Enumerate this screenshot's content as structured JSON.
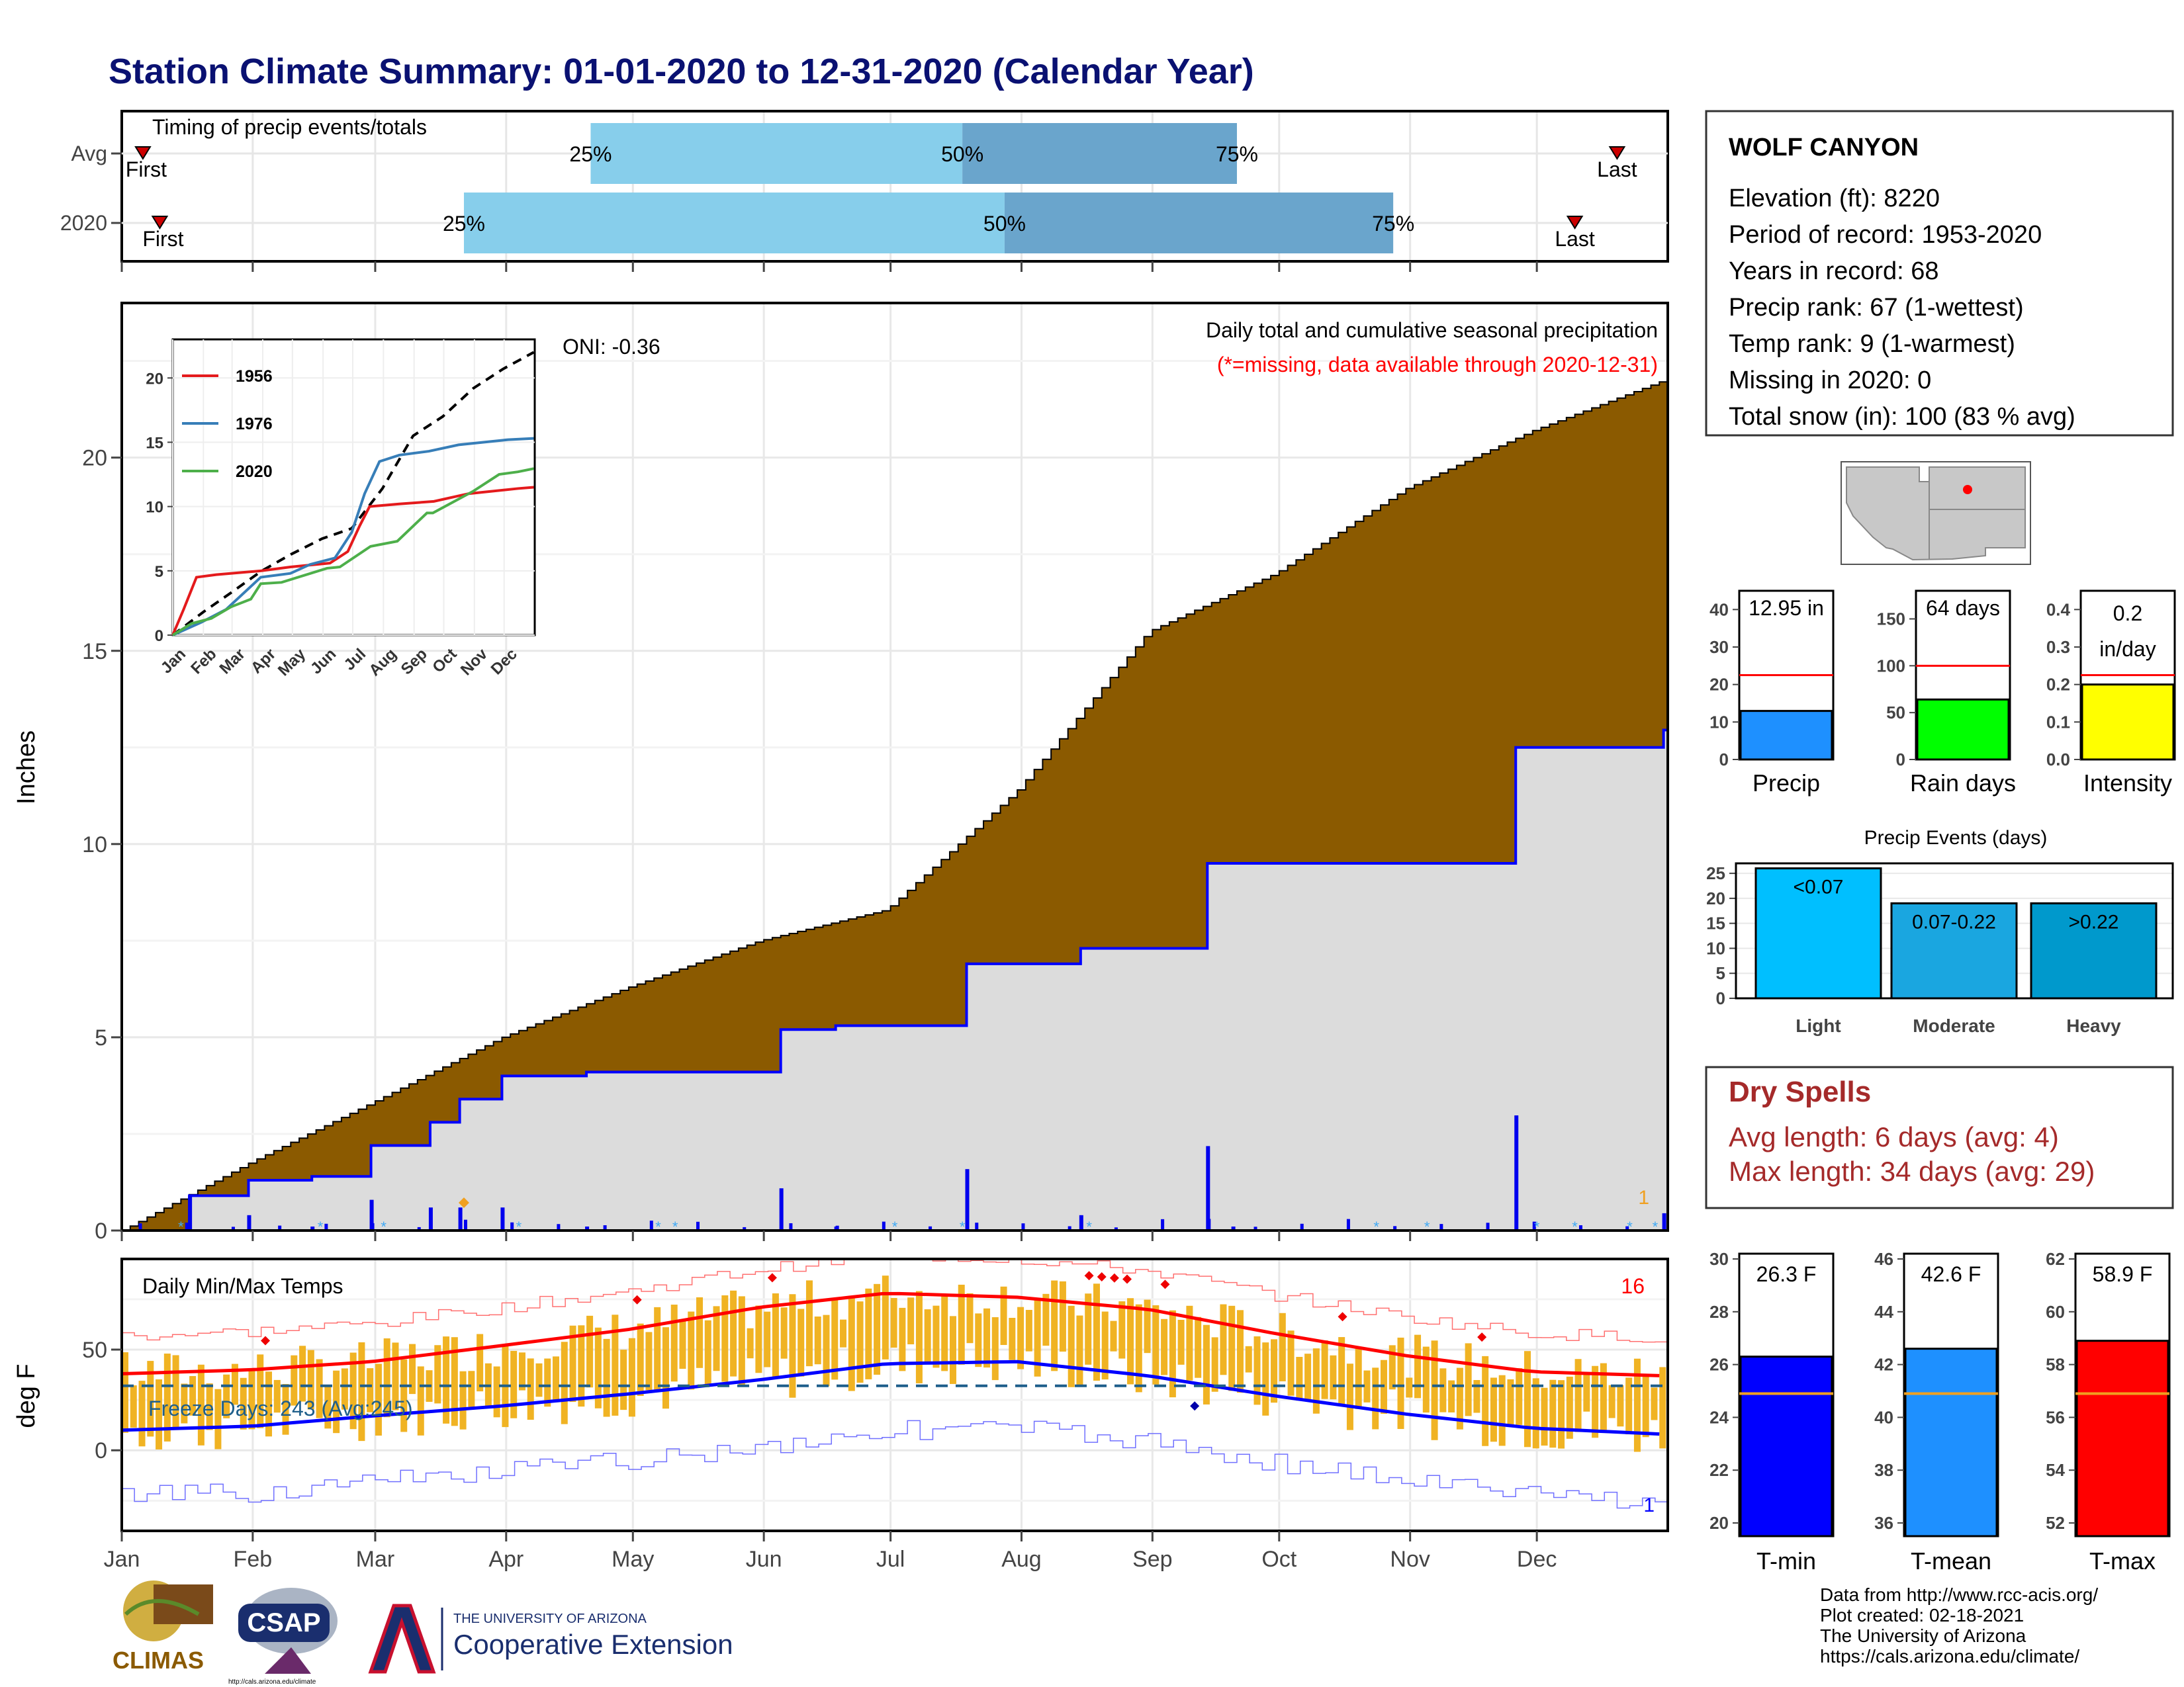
{
  "title": "Station Climate Summary: 01-01-2020 to 12-31-2020 (Calendar Year)",
  "months": [
    "Jan",
    "Feb",
    "Mar",
    "Apr",
    "May",
    "Jun",
    "Jul",
    "Aug",
    "Sep",
    "Oct",
    "Nov",
    "Dec"
  ],
  "colors": {
    "title": "#0a1172",
    "precip_fill": "#8b5a00",
    "precip_2020_fill": "#dcdcdc",
    "precip_line": "#0000ff",
    "quartile_light": "#87ceeb",
    "quartile_dark": "#6aa5cc",
    "temp_bar": "#f0b323",
    "tmax_line": "#ff0000",
    "tmin_line": "#0000ff",
    "dry_spells": "#a52a2a",
    "missing_note": "#ff0000"
  },
  "station": {
    "name": "WOLF CANYON",
    "lines": [
      "Elevation (ft): 8220",
      "Period of record: 1953-2020",
      "Years in record: 68",
      "Precip rank: 67 (1-wettest)",
      "Temp rank: 9 (1-warmest)",
      "Missing in 2020: 0",
      "Total snow (in): 100 (83 % avg)"
    ]
  },
  "timing_panel": {
    "label": "Timing of precip events/totals",
    "rows": [
      {
        "label": "Avg",
        "first": "First",
        "last": "Last",
        "first_doy": 6,
        "last_doy": 355,
        "q25_doy": 112,
        "q50_doy": 200,
        "q75_doy": 265
      },
      {
        "label": "2020",
        "first": "First",
        "last": "Last",
        "first_doy": 10,
        "last_doy": 345,
        "q25_doy": 82,
        "q50_doy": 210,
        "q75_doy": 302
      }
    ],
    "q_labels": [
      "25%",
      "50%",
      "75%"
    ]
  },
  "precip_panel": {
    "ylabel": "Inches",
    "yticks": [
      "0",
      "5",
      "10",
      "15",
      "20"
    ],
    "ylim": [
      0,
      24
    ],
    "title_line1": "Daily total and cumulative seasonal precipitation",
    "title_line2": "(*=missing, data available through 2020-12-31)",
    "oni": "ONI: -0.36",
    "extreme_count": "1",
    "chart_data": {
      "type": "area",
      "avg_cumulative": {
        "doy": [
          1,
          32,
          60,
          91,
          121,
          152,
          182,
          213,
          244,
          274,
          305,
          335,
          366
        ],
        "values": [
          0,
          1.8,
          3.3,
          5.0,
          6.3,
          7.5,
          8.3,
          11.4,
          15.5,
          17.0,
          19.2,
          20.7,
          22.0
        ]
      },
      "cumulative_2020": {
        "doy": [
          1,
          17,
          31,
          46,
          60,
          74,
          81,
          91,
          111,
          157,
          170,
          201,
          228,
          258,
          264,
          331,
          366
        ],
        "values": [
          0,
          0.9,
          1.3,
          1.4,
          2.2,
          2.8,
          3.4,
          4.0,
          4.1,
          5.2,
          5.3,
          6.9,
          7.3,
          9.5,
          9.5,
          12.5,
          12.95
        ],
        "total": 12.95
      }
    }
  },
  "inset": {
    "series": [
      {
        "name": "1956",
        "color": "#e41a1c",
        "doy": [
          1,
          12,
          25,
          45,
          90,
          120,
          160,
          178,
          190,
          200,
          230,
          265,
          300,
          350,
          366
        ],
        "values": [
          0,
          2,
          4.5,
          4.7,
          5.0,
          5.3,
          5.6,
          6.5,
          8.5,
          10.0,
          10.2,
          10.4,
          11.0,
          11.4,
          11.5
        ]
      },
      {
        "name": "1976",
        "color": "#377eb8",
        "doy": [
          1,
          30,
          55,
          90,
          120,
          140,
          165,
          182,
          195,
          210,
          230,
          260,
          290,
          340,
          366
        ],
        "values": [
          0,
          1.0,
          2.0,
          4.5,
          4.8,
          5.5,
          6.0,
          8.0,
          11.0,
          13.5,
          14.0,
          14.3,
          14.8,
          15.2,
          15.3
        ]
      },
      {
        "name": "2020",
        "color": "#4daf4a",
        "doy": [
          1,
          20,
          40,
          60,
          80,
          90,
          111,
          157,
          170,
          201,
          228,
          258,
          264,
          305,
          331,
          350,
          366
        ],
        "values": [
          0,
          0.9,
          1.3,
          2.2,
          2.8,
          4.0,
          4.1,
          5.2,
          5.3,
          6.9,
          7.3,
          9.5,
          9.5,
          11.2,
          12.5,
          12.7,
          12.95
        ]
      }
    ],
    "avg": {
      "doy": [
        1,
        32,
        60,
        91,
        121,
        152,
        182,
        213,
        244,
        274,
        305,
        335,
        366
      ],
      "values": [
        0,
        1.8,
        3.3,
        5.0,
        6.3,
        7.5,
        8.3,
        11.4,
        15.5,
        17.0,
        19.2,
        20.7,
        22.0
      ]
    },
    "yticks": [
      "0",
      "5",
      "10",
      "15",
      "20"
    ]
  },
  "temp_panel": {
    "ylabel": "deg F",
    "label": "Daily Min/Max Temps",
    "freeze": "Freeze Days: 243 (Avg:245)",
    "hot_count": "16",
    "cold_count": "1",
    "yticks": [
      "0",
      "50"
    ],
    "ylim": [
      -40,
      95
    ],
    "chart_data": {
      "type": "line",
      "tmax_normal": {
        "doy": [
          1,
          32,
          60,
          91,
          121,
          152,
          182,
          213,
          244,
          274,
          305,
          335,
          366
        ],
        "values": [
          38,
          40,
          44,
          52,
          60,
          71,
          78,
          76,
          70,
          58,
          47,
          39,
          37
        ]
      },
      "tmin_normal": {
        "doy": [
          1,
          32,
          60,
          91,
          121,
          152,
          182,
          213,
          244,
          274,
          305,
          335,
          366
        ],
        "values": [
          10,
          12,
          17,
          22,
          28,
          35,
          43,
          44,
          37,
          27,
          18,
          11,
          8
        ]
      }
    }
  },
  "mini_bars": [
    {
      "label": "Precip",
      "value_text": "12.95 in",
      "value": 12.95,
      "avg": 22.5,
      "ylim": [
        0,
        45
      ],
      "yticks": [
        "0",
        "10",
        "20",
        "30",
        "40"
      ],
      "color": "#1e90ff"
    },
    {
      "label": "Rain days",
      "value_text": "64 days",
      "value": 64,
      "avg": 100,
      "ylim": [
        0,
        180
      ],
      "yticks": [
        "0",
        "50",
        "100",
        "150"
      ],
      "color": "#00ff00"
    },
    {
      "label": "Intensity",
      "value_text": "0.2 in/day",
      "value_line1": "0.2",
      "value_line2": "in/day",
      "value": 0.2,
      "avg": 0.225,
      "ylim": [
        0,
        0.45
      ],
      "yticks": [
        "0.0",
        "0.1",
        "0.2",
        "0.3",
        "0.4"
      ],
      "color": "#ffff00"
    }
  ],
  "events": {
    "title": "Precip Events (days)",
    "yticks": [
      "0",
      "5",
      "10",
      "15",
      "20",
      "25"
    ],
    "ylim": [
      0,
      27
    ],
    "bars": [
      {
        "label": "Light",
        "range": "<0.07",
        "value": 26,
        "color": "#00bfff"
      },
      {
        "label": "Moderate",
        "range": "0.07-0.22",
        "value": 19,
        "color": "#1aa6e0"
      },
      {
        "label": "Heavy",
        "range": ">0.22",
        "value": 19,
        "color": "#0099cc"
      }
    ]
  },
  "dry_spells": {
    "title": "Dry Spells",
    "avg": "Avg length: 6 days (avg: 4)",
    "max": "Max length: 34 days (avg: 29)"
  },
  "temp_bars": [
    {
      "label": "T-min",
      "value_text": "26.3 F",
      "value": 26.3,
      "avg": 24.9,
      "ylim": [
        19.5,
        30.2
      ],
      "yticks": [
        "20",
        "22",
        "24",
        "26",
        "28",
        "30"
      ],
      "color": "#0000ff"
    },
    {
      "label": "T-mean",
      "value_text": "42.6 F",
      "value": 42.6,
      "avg": 40.9,
      "ylim": [
        35.5,
        46.2
      ],
      "yticks": [
        "36",
        "38",
        "40",
        "42",
        "44",
        "46"
      ],
      "color": "#1e90ff"
    },
    {
      "label": "T-max",
      "value_text": "58.9 F",
      "value": 58.9,
      "avg": 56.9,
      "ylim": [
        51.5,
        62.2
      ],
      "yticks": [
        "52",
        "54",
        "56",
        "58",
        "60",
        "62"
      ],
      "color": "#ff0000"
    }
  ],
  "credits": [
    "Data from http://www.rcc-acis.org/",
    "Plot created: 02-18-2021",
    "The University of Arizona",
    "https://cals.arizona.edu/climate/"
  ],
  "logos": {
    "climas": "CLIMAS",
    "csap": "CSAP",
    "csap_url": "http://cals.arizona.edu/climate",
    "ua_line1": "THE UNIVERSITY OF ARIZONA",
    "ua_line2": "Cooperative Extension"
  }
}
